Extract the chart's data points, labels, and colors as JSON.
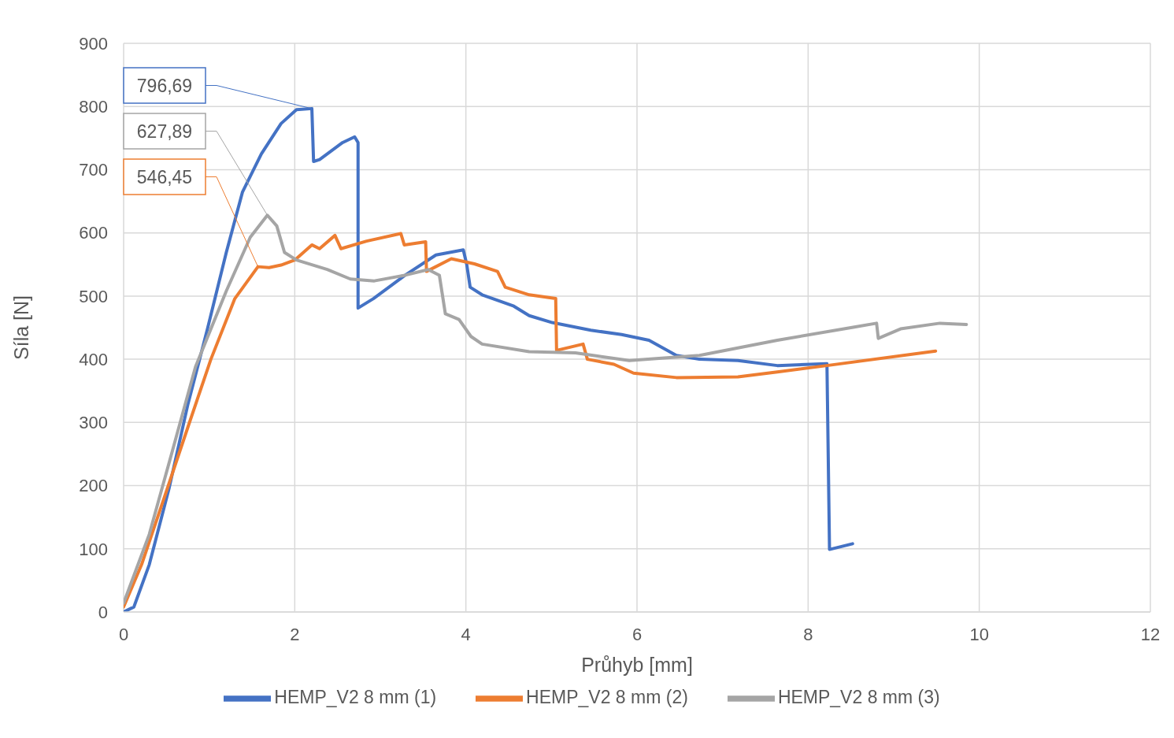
{
  "chart_data": {
    "type": "line",
    "xlabel": "Průhyb [mm]",
    "ylabel": "Síla [N]",
    "xlim": [
      0,
      12
    ],
    "xticks": [
      0,
      2,
      4,
      6,
      8,
      10,
      12
    ],
    "ylim": [
      0,
      900
    ],
    "yticks": [
      0,
      100,
      200,
      300,
      400,
      500,
      600,
      700,
      800,
      900
    ],
    "grid": true,
    "legend": "bottom",
    "marker": "none",
    "line_style": "solid",
    "annotations": [
      {
        "text": "796,69",
        "x": 2.2,
        "y": 796.69
      },
      {
        "text": "627,89",
        "x": 1.68,
        "y": 627.89
      },
      {
        "text": "546,45",
        "x": 1.57,
        "y": 546.45
      }
    ],
    "series": [
      {
        "name": "HEMP_V2 8 mm (1)",
        "color": "#4472c4",
        "x": [
          0,
          0.12,
          0.3,
          0.53,
          0.75,
          0.98,
          1.2,
          1.39,
          1.61,
          1.84,
          2.02,
          2.2,
          2.22,
          2.29,
          2.56,
          2.7,
          2.74,
          2.74,
          2.92,
          3.29,
          3.65,
          3.97,
          4.01,
          4.05,
          4.19,
          4.56,
          4.74,
          5.01,
          5.46,
          5.82,
          6.14,
          6.46,
          6.73,
          7.18,
          7.64,
          8.22,
          8.25,
          8.52
        ],
        "values": [
          0,
          8,
          75,
          195,
          328,
          448,
          569,
          665,
          725,
          773,
          795,
          796.69,
          713,
          716,
          743,
          752,
          743,
          481,
          496,
          533,
          565,
          573,
          550,
          514,
          502,
          484,
          469,
          458,
          446,
          439,
          430,
          406,
          400,
          398,
          390,
          393,
          99,
          108
        ]
      },
      {
        "name": "HEMP_V2 8 mm (2)",
        "color": "#ed7d31",
        "x": [
          0,
          0.21,
          0.48,
          0.75,
          1.02,
          1.3,
          1.57,
          1.7,
          1.84,
          2.0,
          2.2,
          2.29,
          2.47,
          2.54,
          2.84,
          3.24,
          3.28,
          3.53,
          3.54,
          3.83,
          4.1,
          4.37,
          4.46,
          4.74,
          5.05,
          5.06,
          5.37,
          5.42,
          5.73,
          5.96,
          6.46,
          7.18,
          7.64,
          8.22,
          9.49
        ],
        "values": [
          8,
          75,
          183,
          292,
          400,
          496,
          546.45,
          545,
          549,
          557,
          581,
          575,
          596,
          575,
          587,
          599,
          581,
          586,
          539,
          559,
          551,
          539,
          514,
          502,
          496,
          414,
          424,
          400,
          392,
          378,
          371,
          372,
          380,
          390,
          413
        ]
      },
      {
        "name": "HEMP_V2 8 mm (3)",
        "color": "#a5a5a5",
        "x": [
          0,
          0.3,
          0.57,
          0.84,
          1.2,
          1.48,
          1.68,
          1.79,
          1.88,
          2.02,
          2.38,
          2.65,
          2.93,
          3.29,
          3.56,
          3.69,
          3.76,
          3.92,
          4.06,
          4.19,
          4.74,
          5.28,
          5.91,
          6.73,
          7.64,
          8.54,
          8.8,
          8.82,
          9.08,
          9.54,
          9.85
        ],
        "values": [
          14,
          123,
          255,
          388,
          508,
          593,
          627.89,
          611,
          569,
          557,
          542,
          527,
          524,
          533,
          542,
          533,
          472,
          463,
          436,
          424,
          412,
          410,
          398,
          406,
          430,
          451,
          457,
          433,
          448,
          457,
          455
        ]
      }
    ]
  }
}
